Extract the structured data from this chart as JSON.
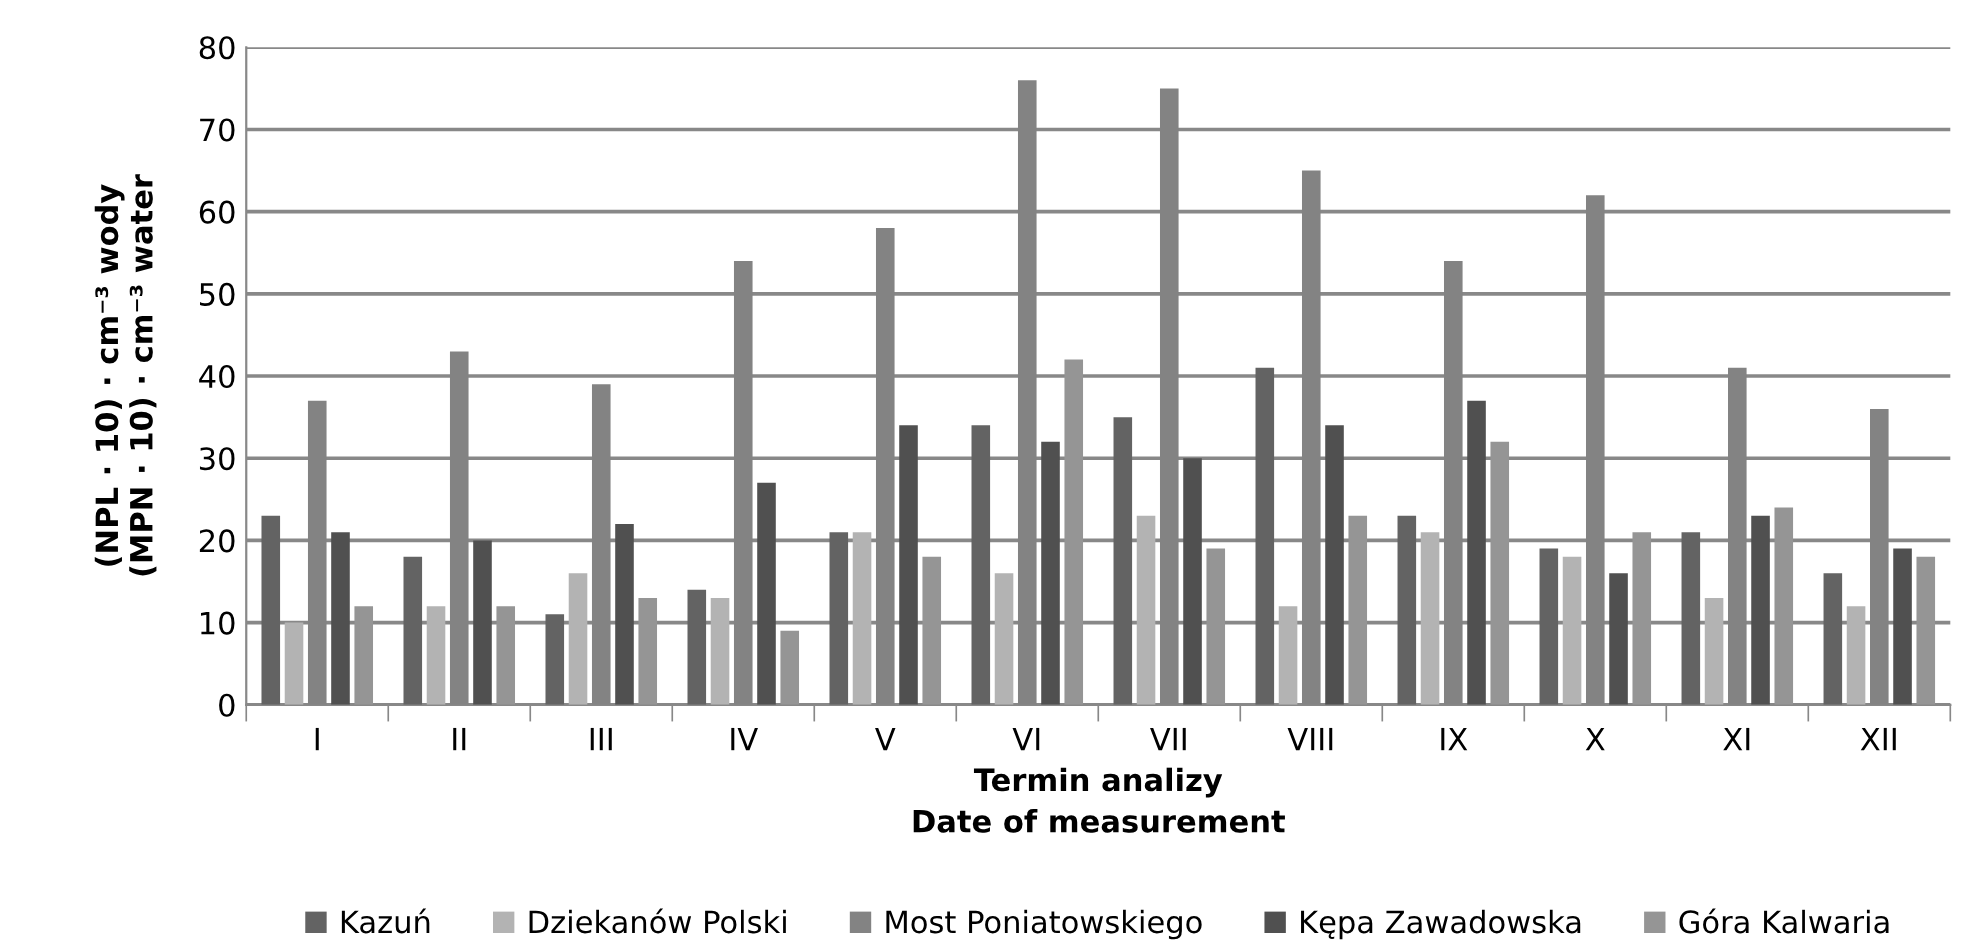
{
  "chart_data": {
    "type": "bar",
    "xlabel": "Termin analizy\nDate of measurement",
    "ylabel": "(NPL · 10) · cm⁻³ wody\n(MPN · 10) · cm⁻³ water",
    "categories": [
      "I",
      "II",
      "III",
      "IV",
      "V",
      "VI",
      "VII",
      "VIII",
      "IX",
      "X",
      "XI",
      "XII"
    ],
    "series": [
      {
        "name": "Kazuń",
        "color": "#636363",
        "values": [
          23,
          18,
          11,
          14,
          21,
          34,
          35,
          41,
          23,
          19,
          21,
          16
        ]
      },
      {
        "name": "Dziekanów Polski",
        "color": "#b3b3b3",
        "values": [
          10,
          12,
          16,
          13,
          21,
          16,
          23,
          12,
          21,
          18,
          13,
          12
        ]
      },
      {
        "name": "Most Poniatowskiego",
        "color": "#838383",
        "values": [
          37,
          43,
          39,
          54,
          58,
          76,
          75,
          65,
          54,
          62,
          41,
          36
        ]
      },
      {
        "name": "Kępa Zawadowska",
        "color": "#505050",
        "values": [
          21,
          20,
          22,
          27,
          34,
          32,
          30,
          34,
          37,
          16,
          23,
          19
        ]
      },
      {
        "name": "Góra Kalwaria",
        "color": "#959595",
        "values": [
          12,
          12,
          13,
          9,
          18,
          42,
          19,
          23,
          32,
          21,
          24,
          18
        ]
      }
    ],
    "ylim": [
      0,
      80
    ],
    "yticks": [
      0,
      10,
      20,
      30,
      40,
      50,
      60,
      70,
      80
    ],
    "grid": "y",
    "legend": "bottom"
  }
}
